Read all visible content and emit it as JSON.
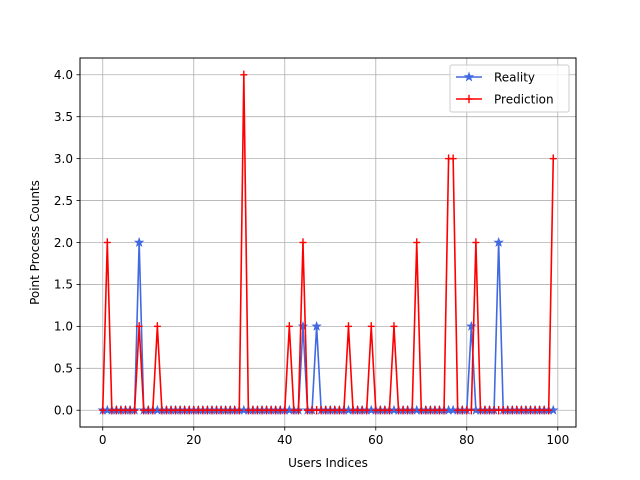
{
  "chart_data": {
    "type": "line",
    "xlabel": "Users Indices",
    "ylabel": "Point Process Counts",
    "xlim": [
      -5,
      104
    ],
    "ylim": [
      -0.2,
      4.2
    ],
    "xticks": [
      0,
      20,
      40,
      60,
      80,
      100
    ],
    "yticks": [
      "0.0",
      "0.5",
      "1.0",
      "1.5",
      "2.0",
      "2.5",
      "3.0",
      "3.5",
      "4.0"
    ],
    "grid": true,
    "legend_position": "top-right",
    "x": [
      0,
      1,
      2,
      3,
      4,
      5,
      6,
      7,
      8,
      9,
      10,
      11,
      12,
      13,
      14,
      15,
      16,
      17,
      18,
      19,
      20,
      21,
      22,
      23,
      24,
      25,
      26,
      27,
      28,
      29,
      30,
      31,
      32,
      33,
      34,
      35,
      36,
      37,
      38,
      39,
      40,
      41,
      42,
      43,
      44,
      45,
      46,
      47,
      48,
      49,
      50,
      51,
      52,
      53,
      54,
      55,
      56,
      57,
      58,
      59,
      60,
      61,
      62,
      63,
      64,
      65,
      66,
      67,
      68,
      69,
      70,
      71,
      72,
      73,
      74,
      75,
      76,
      77,
      78,
      79,
      80,
      81,
      82,
      83,
      84,
      85,
      86,
      87,
      88,
      89,
      90,
      91,
      92,
      93,
      94,
      95,
      96,
      97,
      98,
      99
    ],
    "series": [
      {
        "name": "Reality",
        "color": "#4169e1",
        "marker": "star-filled",
        "values": [
          0,
          0,
          0,
          0,
          0,
          0,
          0,
          0,
          2,
          0,
          0,
          0,
          0,
          0,
          0,
          0,
          0,
          0,
          0,
          0,
          0,
          0,
          0,
          0,
          0,
          0,
          0,
          0,
          0,
          0,
          0,
          0,
          0,
          0,
          0,
          0,
          0,
          0,
          0,
          0,
          0,
          0,
          0,
          0,
          1,
          0,
          0,
          1,
          0,
          0,
          0,
          0,
          0,
          0,
          0,
          0,
          0,
          0,
          0,
          0,
          0,
          0,
          0,
          0,
          0,
          0,
          0,
          0,
          0,
          0,
          0,
          0,
          0,
          0,
          0,
          0,
          0,
          0,
          0,
          0,
          0,
          1,
          0,
          0,
          0,
          0,
          0,
          2,
          0,
          0,
          0,
          0,
          0,
          0,
          0,
          0,
          0,
          0,
          0,
          0
        ]
      },
      {
        "name": "Prediction",
        "color": "#ff0000",
        "marker": "plus",
        "values": [
          0,
          2,
          0,
          0,
          0,
          0,
          0,
          0,
          1,
          0,
          0,
          0,
          1,
          0,
          0,
          0,
          0,
          0,
          0,
          0,
          0,
          0,
          0,
          0,
          0,
          0,
          0,
          0,
          0,
          0,
          0,
          4,
          0,
          0,
          0,
          0,
          0,
          0,
          0,
          0,
          0,
          1,
          0,
          0,
          2,
          0,
          0,
          0,
          0,
          0,
          0,
          0,
          0,
          0,
          1,
          0,
          0,
          0,
          0,
          1,
          0,
          0,
          0,
          0,
          1,
          0,
          0,
          0,
          0,
          2,
          0,
          0,
          0,
          0,
          0,
          0,
          3,
          3,
          0,
          0,
          0,
          0,
          2,
          0,
          0,
          0,
          0,
          0,
          0,
          0,
          0,
          0,
          0,
          0,
          0,
          0,
          0,
          0,
          0,
          3
        ]
      }
    ]
  }
}
